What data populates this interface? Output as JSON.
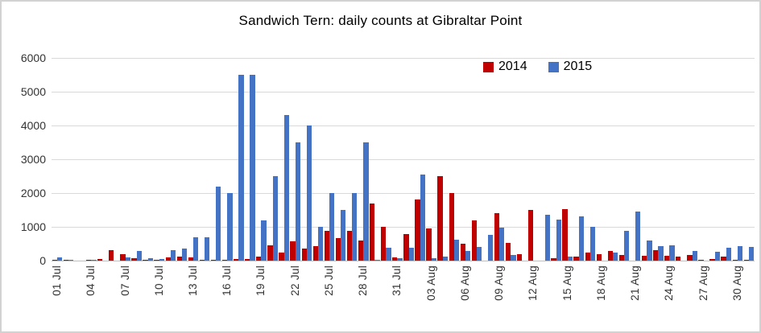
{
  "chart_data": {
    "type": "bar",
    "title": "Sandwich Tern: daily counts at Gibraltar Point",
    "ylim": [
      0,
      6000
    ],
    "ytick_step": 1000,
    "yticks": [
      0,
      1000,
      2000,
      3000,
      4000,
      5000,
      6000
    ],
    "xtick_every": 3,
    "grid": true,
    "legend_position": "inside-top-right",
    "categories": [
      "01 Jul",
      "02 Jul",
      "03 Jul",
      "04 Jul",
      "05 Jul",
      "06 Jul",
      "07 Jul",
      "08 Jul",
      "09 Jul",
      "10 Jul",
      "11 Jul",
      "12 Jul",
      "13 Jul",
      "14 Jul",
      "15 Jul",
      "16 Jul",
      "17 Jul",
      "18 Jul",
      "19 Jul",
      "20 Jul",
      "21 Jul",
      "22 Jul",
      "23 Jul",
      "24 Jul",
      "25 Jul",
      "26 Jul",
      "27 Jul",
      "28 Jul",
      "29 Jul",
      "30 Jul",
      "31 Jul",
      "01 Aug",
      "02 Aug",
      "03 Aug",
      "04 Aug",
      "05 Aug",
      "06 Aug",
      "07 Aug",
      "08 Aug",
      "09 Aug",
      "10 Aug",
      "11 Aug",
      "12 Aug",
      "13 Aug",
      "14 Aug",
      "15 Aug",
      "16 Aug",
      "17 Aug",
      "18 Aug",
      "19 Aug",
      "20 Aug",
      "21 Aug",
      "22 Aug",
      "23 Aug",
      "24 Aug",
      "25 Aug",
      "26 Aug",
      "27 Aug",
      "28 Aug",
      "29 Aug",
      "30 Aug",
      "31 Aug"
    ],
    "series": [
      {
        "name": "2014",
        "color": "#c00000",
        "values": [
          30,
          25,
          0,
          30,
          50,
          300,
          180,
          60,
          25,
          25,
          90,
          110,
          90,
          30,
          30,
          30,
          40,
          40,
          130,
          450,
          250,
          560,
          350,
          430,
          880,
          670,
          870,
          600,
          1700,
          1000,
          90,
          780,
          1800,
          950,
          2500,
          2000,
          510,
          1200,
          0,
          1400,
          520,
          190,
          1500,
          0,
          60,
          1520,
          110,
          250,
          190,
          280,
          170,
          0,
          140,
          300,
          140,
          120,
          170,
          25,
          50,
          125,
          20,
          20
        ]
      },
      {
        "name": "2015",
        "color": "#4472c4",
        "values": [
          90,
          30,
          0,
          30,
          0,
          0,
          100,
          285,
          70,
          40,
          300,
          350,
          700,
          700,
          2200,
          2000,
          5500,
          5500,
          1200,
          2500,
          4300,
          3500,
          4000,
          1000,
          2000,
          1500,
          2000,
          3500,
          30,
          380,
          60,
          370,
          2550,
          60,
          110,
          620,
          290,
          400,
          760,
          980,
          170,
          0,
          0,
          1350,
          1220,
          110,
          1300,
          1000,
          0,
          250,
          880,
          1450,
          600,
          430,
          460,
          0,
          285,
          0,
          270,
          380,
          420,
          400
        ]
      }
    ]
  }
}
